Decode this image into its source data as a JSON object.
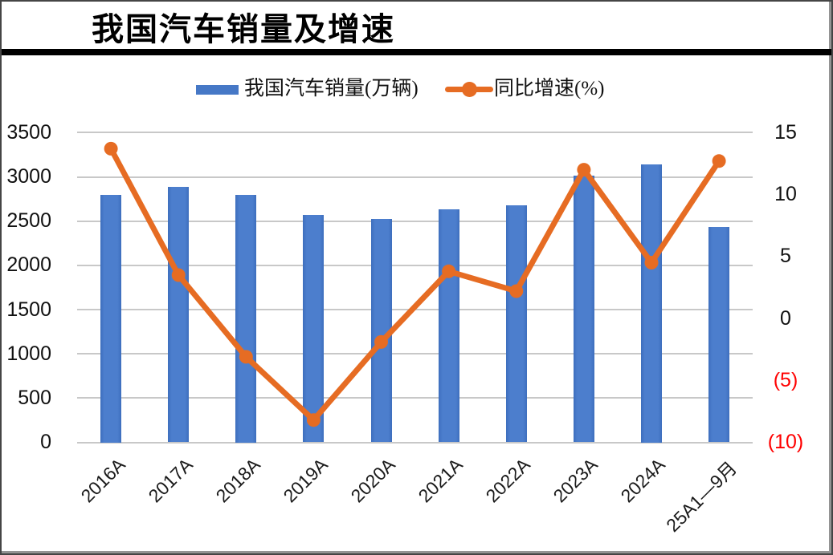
{
  "title": "我国汽车销量及增速",
  "legend": [
    {
      "label": "我国汽车销量(万辆)",
      "type": "bar",
      "color": "#4678C6"
    },
    {
      "label": "同比增速(%)",
      "type": "line",
      "color": "#E66C23"
    }
  ],
  "chart_data": {
    "type": "combo-bar-line",
    "title": "我国汽车销量及增速",
    "categories": [
      "2016A",
      "2017A",
      "2018A",
      "2019A",
      "2020A",
      "2021A",
      "2022A",
      "2023A",
      "2024A",
      "25A1—9月"
    ],
    "series": [
      {
        "name": "我国汽车销量(万辆)",
        "type": "bar",
        "axis": "primary",
        "color": "#4678C6",
        "values": [
          2800,
          2890,
          2800,
          2570,
          2520,
          2630,
          2680,
          3010,
          3140,
          2430
        ]
      },
      {
        "name": "同比增速(%)",
        "type": "line",
        "axis": "secondary",
        "color": "#E66C23",
        "values": [
          13.7,
          3.5,
          -3.1,
          -8.2,
          -1.9,
          3.8,
          2.2,
          12.0,
          4.5,
          12.7
        ]
      }
    ],
    "primary_axis": {
      "min": 0,
      "max": 3500,
      "step": 500,
      "tick_labels": [
        "3500",
        "3000",
        "2500",
        "2000",
        "1500",
        "1000",
        "500",
        "0"
      ]
    },
    "secondary_axis": {
      "min": -10,
      "max": 15,
      "step": 5,
      "tick_labels": [
        "15",
        "10",
        "5",
        "0",
        "(5)",
        "(10)"
      ],
      "negative_label_color": "#FF0000"
    },
    "grid": true,
    "gridline_color": "#C8C8C8",
    "legend_position": "top"
  }
}
